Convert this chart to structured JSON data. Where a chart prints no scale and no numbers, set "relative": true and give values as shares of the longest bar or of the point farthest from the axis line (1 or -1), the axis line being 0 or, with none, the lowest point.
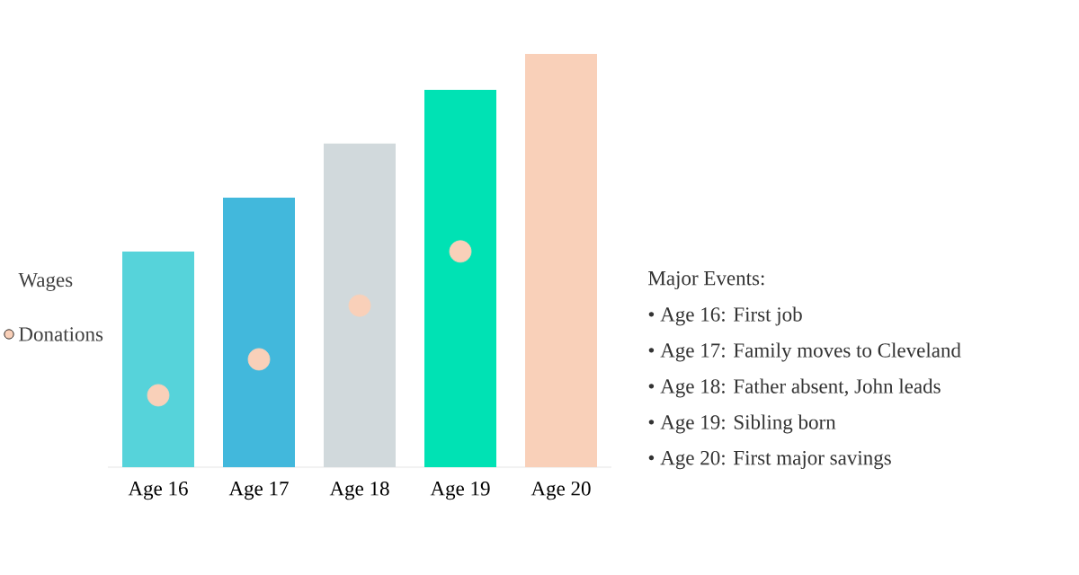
{
  "chart_data": {
    "type": "bar",
    "relative": true,
    "categories": [
      "Age 16",
      "Age 17",
      "Age 18",
      "Age 19",
      "Age 20"
    ],
    "series": [
      {
        "name": "Wages",
        "colors": [
          "#56d3da",
          "#42b8dc",
          "#d1d9dc",
          "#00e2b4",
          "#f9d0b9"
        ],
        "values": [
          0.522,
          0.652,
          0.783,
          0.913,
          1
        ]
      },
      {
        "name": "Donations",
        "type": "scatter",
        "marker": "circle",
        "color": "#f9d0b9",
        "values": [
          0.174,
          0.261,
          0.391,
          0.522,
          null
        ]
      }
    ],
    "legend": "left",
    "annotations": [
      "Major Events:",
      "• Age 16: First job",
      "• Age 17: Family moves to Cleveland",
      "• Age 18: Father absent, John leads",
      "• Age 19: Sibling born",
      "• Age 20: First major savings"
    ]
  }
}
